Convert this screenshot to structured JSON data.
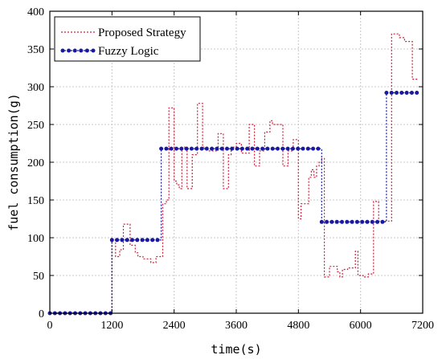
{
  "chart_data": {
    "type": "line",
    "title": "",
    "xlabel": "time(s)",
    "ylabel": "fuel consumption(g)",
    "xlim": [
      0,
      7200
    ],
    "ylim": [
      0,
      400
    ],
    "x_ticks": [
      0,
      1200,
      2400,
      3600,
      4800,
      6000,
      7200
    ],
    "y_ticks": [
      0,
      50,
      100,
      150,
      200,
      250,
      300,
      350,
      400
    ],
    "grid": true,
    "legend_position": "top-left",
    "series": [
      {
        "name": "Proposed Strategy",
        "color": "#cc1f3a",
        "style": "dotted-step",
        "x": [
          0,
          1200,
          1270,
          1350,
          1420,
          1550,
          1650,
          1700,
          1800,
          1900,
          1950,
          2050,
          2150,
          2180,
          2250,
          2300,
          2400,
          2450,
          2500,
          2550,
          2650,
          2750,
          2850,
          2950,
          3050,
          3250,
          3350,
          3450,
          3500,
          3600,
          3700,
          3850,
          3950,
          4050,
          4150,
          4250,
          4300,
          4500,
          4600,
          4700,
          4800,
          4850,
          5000,
          5050,
          5100,
          5150,
          5200,
          5250,
          5300,
          5400,
          5550,
          5600,
          5650,
          5750,
          5900,
          5950,
          6050,
          6150,
          6250,
          6350,
          6450,
          6500,
          6580,
          6600,
          6750,
          6850,
          7000,
          7100
        ],
        "values": [
          0,
          97,
          75,
          84,
          118,
          90,
          80,
          75,
          72,
          72,
          67,
          75,
          75,
          145,
          150,
          272,
          175,
          170,
          165,
          220,
          165,
          210,
          278,
          220,
          215,
          238,
          165,
          210,
          220,
          225,
          212,
          250,
          195,
          215,
          240,
          255,
          250,
          195,
          215,
          230,
          125,
          145,
          180,
          190,
          180,
          195,
          200,
          205,
          48,
          62,
          55,
          48,
          58,
          60,
          82,
          50,
          48,
          52,
          148,
          122,
          122,
          122,
          122,
          370,
          365,
          360,
          310,
          310
        ]
      },
      {
        "name": "Fuzzy Logic",
        "color": "#1a1aa0",
        "style": "dotted-markers",
        "x": [
          0,
          1200,
          2150,
          5250,
          6500,
          7100
        ],
        "values": [
          0,
          97,
          218,
          121,
          292,
          292
        ]
      }
    ]
  }
}
